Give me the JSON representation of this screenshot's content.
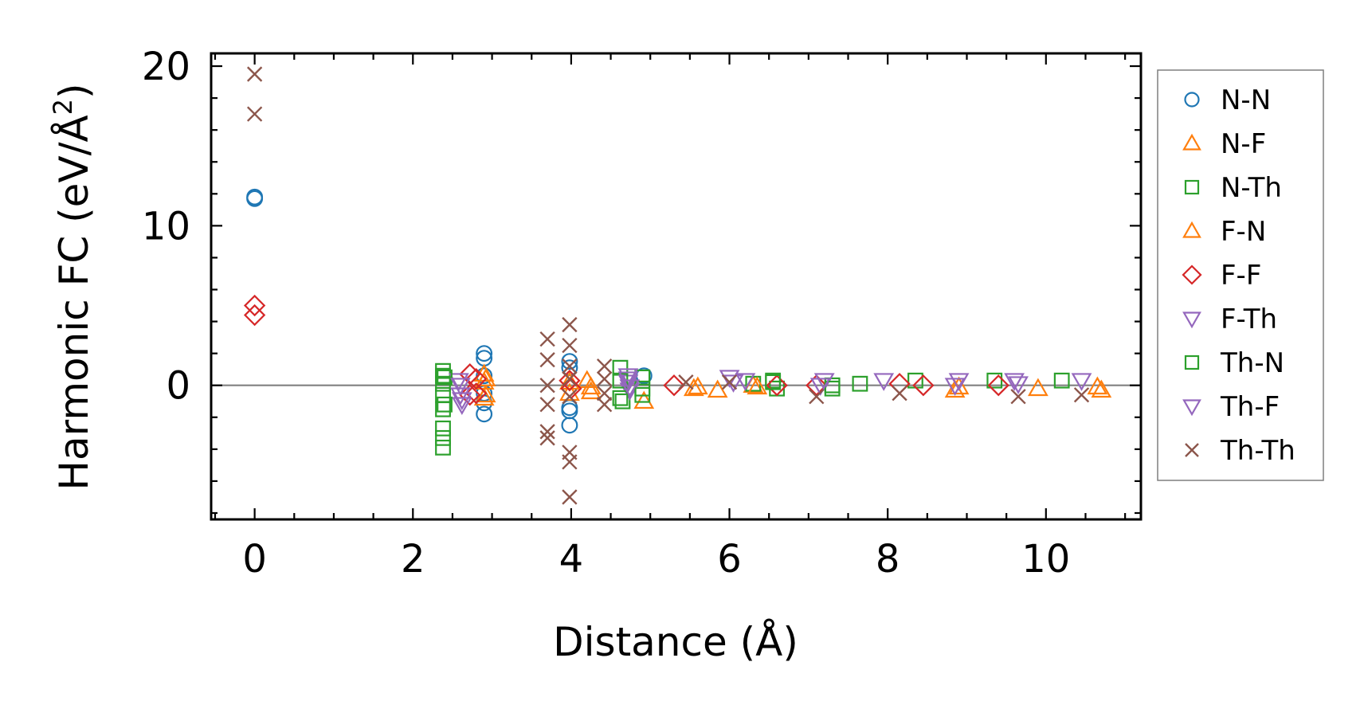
{
  "chart_data": {
    "type": "scatter",
    "xlabel": "Distance (Å)",
    "ylabel_main": "Harmonic FC (eV/Å",
    "ylabel_sup": "2",
    "ylabel_close": ")",
    "xlim": [
      -0.55,
      11.2
    ],
    "ylim": [
      -8.4,
      20.8
    ],
    "xticks": [
      0,
      2,
      4,
      6,
      8,
      10
    ],
    "xtick_labels": [
      "0",
      "2",
      "4",
      "6",
      "8",
      "10"
    ],
    "yticks": [
      0,
      10,
      20
    ],
    "ytick_labels": [
      "0",
      "10",
      "20"
    ],
    "x_minor_step": 0.5,
    "y_minor_step": 2,
    "zero_line": true,
    "legend_position": "outside right",
    "series": [
      {
        "name": "N-N",
        "marker": "circle",
        "color": "#1f77b4",
        "x": [
          0.0,
          0.0,
          2.9,
          2.9,
          2.9,
          2.9,
          2.9,
          2.9,
          3.98,
          3.98,
          3.98,
          3.98,
          3.98,
          4.92
        ],
        "y": [
          11.8,
          11.7,
          2.0,
          1.7,
          0.6,
          -0.5,
          -1.1,
          -1.8,
          1.5,
          1.1,
          -1.4,
          -1.6,
          -2.5,
          0.6
        ]
      },
      {
        "name": "N-F",
        "marker": "triangle-up",
        "color": "#ff7f0e",
        "x": [
          2.9,
          2.9,
          2.9,
          3.98,
          4.2,
          4.25,
          4.92,
          5.55,
          5.85,
          6.3,
          8.85,
          9.9,
          10.65
        ],
        "y": [
          0.7,
          0.2,
          -0.8,
          -0.5,
          0.3,
          -0.4,
          -1.0,
          -0.2,
          -0.3,
          0.0,
          -0.3,
          -0.2,
          -0.1
        ]
      },
      {
        "name": "N-Th",
        "marker": "square",
        "color": "#2ca02c",
        "x": [
          2.38,
          2.38,
          2.38,
          2.38,
          2.38,
          2.38,
          2.38,
          2.38,
          4.62,
          4.65,
          4.9,
          4.9,
          6.3,
          6.55,
          6.6,
          7.3,
          7.65,
          8.35,
          9.35,
          10.2
        ],
        "y": [
          0.9,
          0.6,
          0.1,
          -0.6,
          -1.5,
          -2.7,
          -3.3,
          -3.9,
          1.1,
          -1.0,
          0.5,
          -0.6,
          0.1,
          0.3,
          -0.2,
          0.0,
          0.1,
          0.3,
          0.3,
          0.3
        ]
      },
      {
        "name": "F-N",
        "marker": "triangle-up",
        "color": "#ff7f0e",
        "x": [
          2.92,
          2.92,
          3.98,
          4.25,
          5.6,
          6.35,
          8.9,
          10.7
        ],
        "y": [
          0.4,
          -0.6,
          0.2,
          -0.1,
          -0.1,
          -0.1,
          -0.1,
          -0.3
        ]
      },
      {
        "name": "F-F",
        "marker": "diamond",
        "color": "#d62728",
        "x": [
          0.0,
          0.0,
          2.72,
          2.72,
          2.8,
          2.8,
          3.98,
          4.0,
          5.3,
          6.6,
          7.1,
          8.15,
          8.45,
          9.4
        ],
        "y": [
          5.0,
          4.4,
          0.7,
          -0.6,
          0.4,
          -0.5,
          0.3,
          -0.2,
          0.0,
          0.0,
          0.0,
          0.1,
          0.0,
          0.0
        ]
      },
      {
        "name": "F-Th",
        "marker": "triangle-down",
        "color": "#9467bd",
        "x": [
          2.58,
          2.6,
          2.62,
          4.72,
          4.72,
          4.74,
          6.0,
          6.2,
          7.2,
          7.95,
          8.9,
          9.6,
          10.45
        ],
        "y": [
          0.3,
          -0.6,
          -1.2,
          0.6,
          0.2,
          -0.3,
          0.5,
          0.3,
          0.3,
          0.3,
          0.3,
          0.3,
          0.3
        ]
      },
      {
        "name": "Th-N",
        "marker": "square",
        "color": "#2ca02c",
        "x": [
          2.4,
          2.4,
          4.62,
          4.62,
          4.9,
          6.55,
          7.3
        ],
        "y": [
          0.5,
          -1.2,
          0.3,
          -0.8,
          -0.2,
          0.2,
          -0.2
        ]
      },
      {
        "name": "Th-F",
        "marker": "triangle-down",
        "color": "#9467bd",
        "x": [
          2.6,
          2.62,
          4.72,
          4.74,
          6.05,
          7.15,
          8.85,
          9.65
        ],
        "y": [
          0.0,
          -0.9,
          0.4,
          -0.1,
          0.2,
          0.0,
          0.0,
          0.1
        ]
      },
      {
        "name": "Th-Th",
        "marker": "x",
        "color": "#8c564b",
        "x": [
          0.0,
          0.0,
          3.7,
          3.7,
          3.7,
          3.7,
          3.7,
          3.7,
          3.98,
          3.98,
          3.98,
          3.98,
          3.98,
          3.98,
          3.98,
          3.98,
          4.42,
          4.42,
          4.42,
          4.42,
          5.45,
          6.0,
          7.1,
          8.15,
          9.65,
          10.45
        ],
        "y": [
          19.5,
          17.0,
          2.9,
          1.6,
          0.0,
          -1.2,
          -2.9,
          -3.3,
          3.8,
          2.5,
          1.2,
          0.4,
          -0.7,
          -4.2,
          -4.8,
          -7.0,
          1.2,
          0.4,
          -0.5,
          -1.2,
          0.2,
          0.2,
          -0.7,
          -0.5,
          -0.7,
          -0.6
        ]
      }
    ]
  }
}
